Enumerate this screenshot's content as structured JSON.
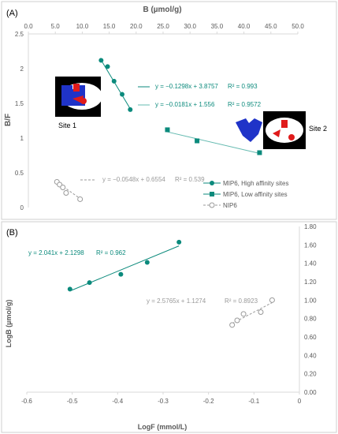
{
  "chart_data": [
    {
      "panel": "(A)",
      "type": "scatter",
      "xlabel": "B (µmol/g)",
      "ylabel": "B/F",
      "xlim": [
        0,
        50
      ],
      "ylim": [
        0,
        2.5
      ],
      "x_ticks": [
        "0.0",
        "5.0",
        "10.0",
        "15.0",
        "20.0",
        "25.0",
        "30.0",
        "35.0",
        "40.0",
        "45.0",
        "50.0"
      ],
      "y_ticks": [
        "0",
        "0.5",
        "1",
        "1.5",
        "2",
        "2.5"
      ],
      "x_axis_position": "top",
      "grid": false,
      "legend_position": "bottom-right",
      "series": [
        {
          "name": "MIP6, High affinity sites",
          "color": "#0b8a7c",
          "marker": "circle-filled",
          "x": [
            13.5,
            14.7,
            15.9,
            17.4,
            18.9
          ],
          "y": [
            2.12,
            2.03,
            1.82,
            1.63,
            1.41
          ],
          "trend": {
            "slope": -0.1298,
            "intercept": 3.8757,
            "x_range": [
              13.3,
              19.2
            ],
            "equation": "y = −0.1298x + 3.8757",
            "r2": "R² = 0.993"
          }
        },
        {
          "name": "MIP6, Low affinity sites",
          "color": "#0b8a7c",
          "marker": "square-filled",
          "x": [
            25.8,
            31.3,
            42.9
          ],
          "y": [
            1.12,
            0.96,
            0.79
          ],
          "trend": {
            "slope": -0.0181,
            "intercept": 1.556,
            "x_range": [
              25.5,
              43.2
            ],
            "equation": "y = −0.0181x + 1.556",
            "r2": "R² = 0.9572"
          }
        },
        {
          "name": "NIP6",
          "color": "#999999",
          "marker": "circle-open",
          "x": [
            5.3,
            5.8,
            6.4,
            7.0,
            9.6
          ],
          "y": [
            0.37,
            0.33,
            0.29,
            0.21,
            0.12
          ],
          "trend": {
            "slope": -0.0548,
            "intercept": 0.6554,
            "x_range": [
              5.3,
              9.6
            ],
            "equation": "y = −0.0548x + 0.6554",
            "r2": "R² = 0.539",
            "dashed": true
          }
        }
      ],
      "annotations": [
        "Site 1",
        "Site 2"
      ]
    },
    {
      "panel": "(B)",
      "type": "scatter",
      "xlabel": "LogF (mmol/L)",
      "ylabel": "LogB (µmol/g)",
      "xlim": [
        -0.6,
        0
      ],
      "ylim": [
        0,
        1.8
      ],
      "x_ticks": [
        "-0.6",
        "-0.5",
        "-0.4",
        "-0.3",
        "-0.2",
        "-0.1",
        "0"
      ],
      "y_ticks": [
        "0.00",
        "0.20",
        "0.40",
        "0.60",
        "0.80",
        "1.00",
        "1.20",
        "1.40",
        "1.60",
        "1.80"
      ],
      "y_axis_position": "right",
      "grid": false,
      "series": [
        {
          "name": "MIP6",
          "color": "#0b8a7c",
          "marker": "circle-filled",
          "x": [
            -0.505,
            -0.462,
            -0.393,
            -0.335,
            -0.265
          ],
          "y": [
            1.12,
            1.19,
            1.28,
            1.41,
            1.63
          ],
          "trend": {
            "slope": 2.041,
            "intercept": 2.1298,
            "x_range": [
              -0.505,
              -0.265
            ],
            "equation": "y = 2.041x + 2.1298",
            "r2": "R² = 0.962"
          }
        },
        {
          "name": "NIP6",
          "color": "#999999",
          "marker": "circle-open",
          "x": [
            -0.148,
            -0.137,
            -0.123,
            -0.085,
            -0.06
          ],
          "y": [
            0.73,
            0.78,
            0.85,
            0.87,
            1.0
          ],
          "trend": {
            "slope": 2.5765,
            "intercept": 1.1274,
            "x_range": [
              -0.148,
              -0.06
            ],
            "equation": "y = 2.5765x + 1.1274",
            "r2": "R² = 0.8923",
            "dashed": true
          }
        }
      ]
    }
  ]
}
